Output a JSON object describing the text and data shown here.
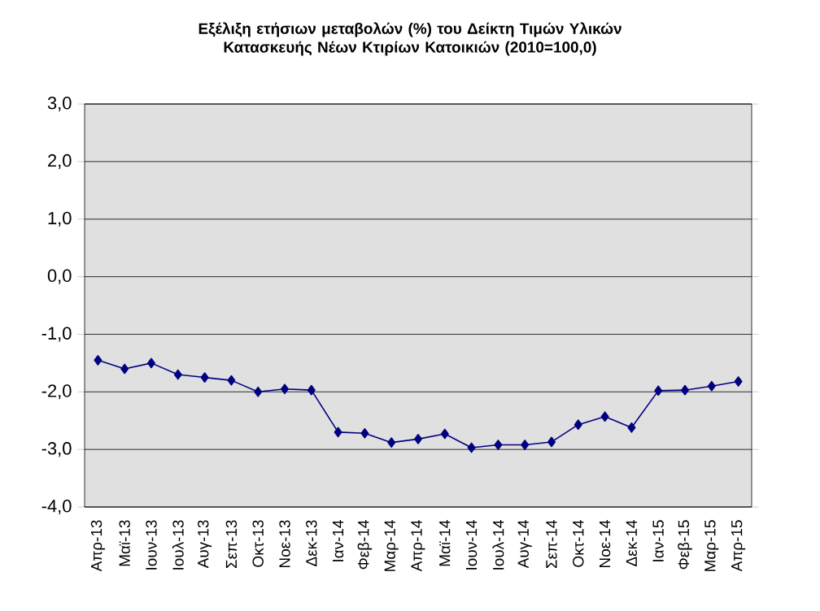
{
  "chart_data": {
    "type": "line",
    "title": "**Εξέλιξη ετήσιων μεταβολών (%) του Δείκτη Τιμών Υλικών Κατασκευής Νέων Κτιρίων Κατοικιών (2010=100,0)**",
    "categories": [
      "Απρ-13",
      "Μαϊ-13",
      "Ιουν-13",
      "Ιουλ-13",
      "Αυγ-13",
      "Σεπ-13",
      "Οκτ-13",
      "Νοε-13",
      "Δεκ-13",
      "Ιαν-14",
      "Φεβ-14",
      "Μαρ-14",
      "Απρ-14",
      "Μαϊ-14",
      "Ιουν-14",
      "Ιουλ-14",
      "Αυγ-14",
      "Σεπ-14",
      "Οκτ-14",
      "Νοε-14",
      "Δεκ-14",
      "Ιαν-15",
      "Φεβ-15",
      "Μαρ-15",
      "Απρ-15"
    ],
    "values": [
      -1.45,
      -1.6,
      -1.5,
      -1.7,
      -1.75,
      -1.8,
      -2.0,
      -1.95,
      -1.97,
      -2.7,
      -2.72,
      -2.88,
      -2.82,
      -2.73,
      -2.97,
      -2.92,
      -2.92,
      -2.87,
      -2.57,
      -2.43,
      -2.62,
      -1.98,
      -1.97,
      -1.9,
      -1.82
    ],
    "color": "#000080",
    "marker": "diamond",
    "grid": "y",
    "ylim": [
      -4,
      3
    ],
    "yticks": [
      {
        "value": -4,
        "label": "-4,0"
      },
      {
        "value": -3,
        "label": "-3,0"
      },
      {
        "value": -2,
        "label": "-2,0"
      },
      {
        "value": -1,
        "label": "-1,0"
      },
      {
        "value": 0,
        "label": "0,0"
      },
      {
        "value": 1,
        "label": "1,0"
      },
      {
        "value": 2,
        "label": "2,0"
      },
      {
        "value": 3,
        "label": "3,0"
      }
    ]
  }
}
